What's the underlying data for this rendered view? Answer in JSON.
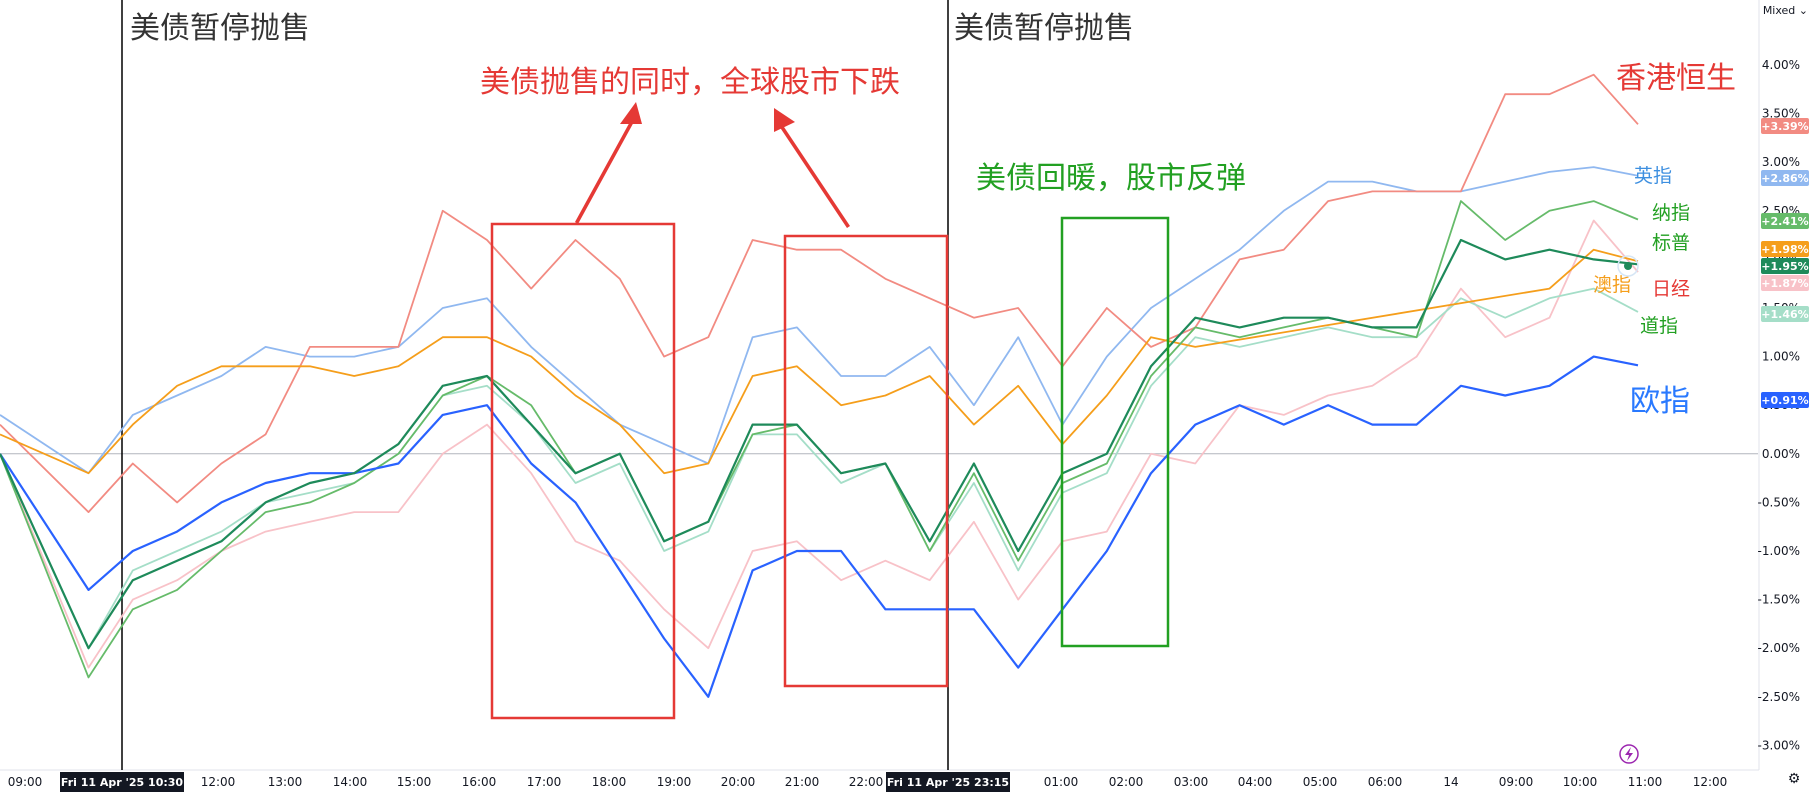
{
  "ui": {
    "scale_mode_label": "Mixed",
    "settings_icon": "gear-icon"
  },
  "colors": {
    "hsi": "#f28b82",
    "ftse": "#90b8f0",
    "nasdaq": "#66bb6a",
    "sp500": "#1e8a5a",
    "asx": "#f59e1b",
    "nikkei": "#f8c2c8",
    "dow": "#a5dec8",
    "stoxx": "#2962ff",
    "annotation_red": "#e53935",
    "annotation_green": "#22a022",
    "event_line": "#000000"
  },
  "chart_data": {
    "type": "line",
    "title": "",
    "xlabel": "",
    "ylabel": "",
    "ylim": [
      -3.0,
      4.0
    ],
    "y_ticks": [
      "4.00%",
      "3.50%",
      "3.00%",
      "2.50%",
      "2.00%",
      "1.50%",
      "1.00%",
      "0.50%",
      "0.00%",
      "-0.50%",
      "-1.00%",
      "-1.50%",
      "-2.00%",
      "-2.50%",
      "-3.00%"
    ],
    "x_ticks": [
      "09:00",
      "12:00",
      "13:00",
      "14:00",
      "15:00",
      "16:00",
      "17:00",
      "18:00",
      "19:00",
      "20:00",
      "21:00",
      "22:00",
      "01:00",
      "02:00",
      "03:00",
      "04:00",
      "05:00",
      "06:00",
      "14",
      "09:00",
      "10:00",
      "11:00",
      "12:00"
    ],
    "x_highlight_labels": [
      "Fri 11 Apr '25  10:30",
      "Fri 11 Apr '25  23:15"
    ],
    "grid": "zero-line only",
    "series": [
      {
        "id": "hsi",
        "last_value": "+3.39%",
        "points": [
          [
            0,
            0.3
          ],
          [
            2,
            -0.6
          ],
          [
            3,
            -0.1
          ],
          [
            4,
            -0.5
          ],
          [
            5,
            -0.1
          ],
          [
            6,
            0.2
          ],
          [
            7,
            1.1
          ],
          [
            8,
            1.1
          ],
          [
            9,
            1.1
          ],
          [
            10,
            2.5
          ],
          [
            11,
            2.2
          ],
          [
            12,
            1.7
          ],
          [
            13,
            2.2
          ],
          [
            14,
            1.8
          ],
          [
            15,
            1.0
          ],
          [
            16,
            1.2
          ],
          [
            17,
            2.2
          ],
          [
            18,
            2.1
          ],
          [
            19,
            2.1
          ],
          [
            20,
            1.8
          ],
          [
            21,
            1.6
          ],
          [
            22,
            1.4
          ],
          [
            23,
            1.5
          ],
          [
            24,
            0.9
          ],
          [
            25,
            1.5
          ],
          [
            26,
            1.1
          ],
          [
            27,
            1.3
          ],
          [
            28,
            2.0
          ],
          [
            29,
            2.1
          ],
          [
            30,
            2.6
          ],
          [
            31,
            2.7
          ],
          [
            32,
            2.7
          ],
          [
            33,
            2.7
          ],
          [
            34,
            3.7
          ],
          [
            35,
            3.7
          ],
          [
            36,
            3.9
          ],
          [
            37,
            3.39
          ]
        ]
      },
      {
        "id": "ftse",
        "last_value": "+2.86%",
        "points": [
          [
            0,
            0.4
          ],
          [
            2,
            -0.2
          ],
          [
            3,
            0.4
          ],
          [
            4,
            0.6
          ],
          [
            5,
            0.8
          ],
          [
            6,
            1.1
          ],
          [
            7,
            1.0
          ],
          [
            8,
            1.0
          ],
          [
            9,
            1.1
          ],
          [
            10,
            1.5
          ],
          [
            11,
            1.6
          ],
          [
            12,
            1.1
          ],
          [
            13,
            0.7
          ],
          [
            14,
            0.3
          ],
          [
            15,
            0.1
          ],
          [
            16,
            -0.1
          ],
          [
            17,
            1.2
          ],
          [
            18,
            1.3
          ],
          [
            19,
            0.8
          ],
          [
            20,
            0.8
          ],
          [
            21,
            1.1
          ],
          [
            22,
            0.5
          ],
          [
            23,
            1.2
          ],
          [
            24,
            0.3
          ],
          [
            25,
            1.0
          ],
          [
            26,
            1.5
          ],
          [
            27,
            1.8
          ],
          [
            28,
            2.1
          ],
          [
            29,
            2.5
          ],
          [
            30,
            2.8
          ],
          [
            31,
            2.8
          ],
          [
            32,
            2.7
          ],
          [
            33,
            2.7
          ],
          [
            34,
            2.8
          ],
          [
            35,
            2.9
          ],
          [
            36,
            2.95
          ],
          [
            37,
            2.86
          ]
        ]
      },
      {
        "id": "nasdaq",
        "last_value": "+2.41%",
        "points": [
          [
            0,
            0.0
          ],
          [
            2,
            -2.3
          ],
          [
            3,
            -1.6
          ],
          [
            4,
            -1.4
          ],
          [
            5,
            -1.0
          ],
          [
            6,
            -0.6
          ],
          [
            7,
            -0.5
          ],
          [
            8,
            -0.3
          ],
          [
            9,
            0.0
          ],
          [
            10,
            0.6
          ],
          [
            11,
            0.8
          ],
          [
            12,
            0.5
          ],
          [
            13,
            -0.2
          ],
          [
            14,
            0.0
          ],
          [
            15,
            -0.9
          ],
          [
            16,
            -0.7
          ],
          [
            17,
            0.2
          ],
          [
            18,
            0.3
          ],
          [
            19,
            -0.2
          ],
          [
            20,
            -0.1
          ],
          [
            21,
            -1.0
          ],
          [
            22,
            -0.2
          ],
          [
            23,
            -1.1
          ],
          [
            24,
            -0.3
          ],
          [
            25,
            -0.1
          ],
          [
            26,
            0.8
          ],
          [
            27,
            1.3
          ],
          [
            28,
            1.2
          ],
          [
            29,
            1.3
          ],
          [
            30,
            1.4
          ],
          [
            31,
            1.3
          ],
          [
            32,
            1.2
          ],
          [
            33,
            2.6
          ],
          [
            34,
            2.2
          ],
          [
            35,
            2.5
          ],
          [
            36,
            2.6
          ],
          [
            37,
            2.41
          ]
        ]
      },
      {
        "id": "sp500",
        "last_value": "+1.95%",
        "points": [
          [
            0,
            0.0
          ],
          [
            2,
            -2.0
          ],
          [
            3,
            -1.3
          ],
          [
            4,
            -1.1
          ],
          [
            5,
            -0.9
          ],
          [
            6,
            -0.5
          ],
          [
            7,
            -0.3
          ],
          [
            8,
            -0.2
          ],
          [
            9,
            0.1
          ],
          [
            10,
            0.7
          ],
          [
            11,
            0.8
          ],
          [
            12,
            0.3
          ],
          [
            13,
            -0.2
          ],
          [
            14,
            0.0
          ],
          [
            15,
            -0.9
          ],
          [
            16,
            -0.7
          ],
          [
            17,
            0.3
          ],
          [
            18,
            0.3
          ],
          [
            19,
            -0.2
          ],
          [
            20,
            -0.1
          ],
          [
            21,
            -0.9
          ],
          [
            22,
            -0.1
          ],
          [
            23,
            -1.0
          ],
          [
            24,
            -0.2
          ],
          [
            25,
            0.0
          ],
          [
            26,
            0.9
          ],
          [
            27,
            1.4
          ],
          [
            28,
            1.3
          ],
          [
            29,
            1.4
          ],
          [
            30,
            1.4
          ],
          [
            31,
            1.3
          ],
          [
            32,
            1.3
          ],
          [
            33,
            2.2
          ],
          [
            34,
            2.0
          ],
          [
            35,
            2.1
          ],
          [
            36,
            2.0
          ],
          [
            37,
            1.95
          ]
        ]
      },
      {
        "id": "asx",
        "last_value": "+1.98%",
        "points": [
          [
            0,
            0.2
          ],
          [
            2,
            -0.2
          ],
          [
            3,
            0.3
          ],
          [
            4,
            0.7
          ],
          [
            5,
            0.9
          ],
          [
            6,
            0.9
          ],
          [
            7,
            0.9
          ],
          [
            8,
            0.8
          ],
          [
            9,
            0.9
          ],
          [
            10,
            1.2
          ],
          [
            11,
            1.2
          ],
          [
            12,
            1.0
          ],
          [
            13,
            0.6
          ],
          [
            14,
            0.3
          ],
          [
            15,
            -0.2
          ],
          [
            16,
            -0.1
          ],
          [
            17,
            0.8
          ],
          [
            18,
            0.9
          ],
          [
            19,
            0.5
          ],
          [
            20,
            0.6
          ],
          [
            21,
            0.8
          ],
          [
            22,
            0.3
          ],
          [
            23,
            0.7
          ],
          [
            24,
            0.1
          ],
          [
            25,
            0.6
          ],
          [
            26,
            1.2
          ],
          [
            27,
            1.1
          ],
          [
            35,
            1.7
          ],
          [
            36,
            2.1
          ],
          [
            37,
            1.98
          ]
        ]
      },
      {
        "id": "nikkei",
        "last_value": "+1.87%",
        "points": [
          [
            0,
            0.0
          ],
          [
            2,
            -2.2
          ],
          [
            3,
            -1.5
          ],
          [
            4,
            -1.3
          ],
          [
            5,
            -1.0
          ],
          [
            6,
            -0.8
          ],
          [
            7,
            -0.7
          ],
          [
            8,
            -0.6
          ],
          [
            9,
            -0.6
          ],
          [
            10,
            0.0
          ],
          [
            11,
            0.3
          ],
          [
            12,
            -0.2
          ],
          [
            13,
            -0.9
          ],
          [
            14,
            -1.1
          ],
          [
            15,
            -1.6
          ],
          [
            16,
            -2.0
          ],
          [
            17,
            -1.0
          ],
          [
            18,
            -0.9
          ],
          [
            19,
            -1.3
          ],
          [
            20,
            -1.1
          ],
          [
            21,
            -1.3
          ],
          [
            22,
            -0.7
          ],
          [
            23,
            -1.5
          ],
          [
            24,
            -0.9
          ],
          [
            25,
            -0.8
          ],
          [
            26,
            0.0
          ],
          [
            27,
            -0.1
          ],
          [
            28,
            0.5
          ],
          [
            29,
            0.4
          ],
          [
            30,
            0.6
          ],
          [
            31,
            0.7
          ],
          [
            32,
            1.0
          ],
          [
            33,
            1.7
          ],
          [
            34,
            1.2
          ],
          [
            35,
            1.4
          ],
          [
            36,
            2.4
          ],
          [
            37,
            1.87
          ]
        ]
      },
      {
        "id": "dow",
        "last_value": "+1.46%",
        "points": [
          [
            0,
            0.0
          ],
          [
            2,
            -2.0
          ],
          [
            3,
            -1.2
          ],
          [
            4,
            -1.0
          ],
          [
            5,
            -0.8
          ],
          [
            6,
            -0.5
          ],
          [
            7,
            -0.4
          ],
          [
            8,
            -0.3
          ],
          [
            9,
            0.0
          ],
          [
            10,
            0.6
          ],
          [
            11,
            0.7
          ],
          [
            12,
            0.3
          ],
          [
            13,
            -0.3
          ],
          [
            14,
            -0.1
          ],
          [
            15,
            -1.0
          ],
          [
            16,
            -0.8
          ],
          [
            17,
            0.2
          ],
          [
            18,
            0.2
          ],
          [
            19,
            -0.3
          ],
          [
            20,
            -0.1
          ],
          [
            21,
            -1.0
          ],
          [
            22,
            -0.3
          ],
          [
            23,
            -1.2
          ],
          [
            24,
            -0.4
          ],
          [
            25,
            -0.2
          ],
          [
            26,
            0.7
          ],
          [
            27,
            1.2
          ],
          [
            28,
            1.1
          ],
          [
            29,
            1.2
          ],
          [
            30,
            1.3
          ],
          [
            31,
            1.2
          ],
          [
            32,
            1.2
          ],
          [
            33,
            1.6
          ],
          [
            34,
            1.4
          ],
          [
            35,
            1.6
          ],
          [
            36,
            1.7
          ],
          [
            37,
            1.46
          ]
        ]
      },
      {
        "id": "stoxx",
        "last_value": "+0.91%",
        "points": [
          [
            0,
            0.0
          ],
          [
            2,
            -1.4
          ],
          [
            3,
            -1.0
          ],
          [
            4,
            -0.8
          ],
          [
            5,
            -0.5
          ],
          [
            6,
            -0.3
          ],
          [
            7,
            -0.2
          ],
          [
            8,
            -0.2
          ],
          [
            9,
            -0.1
          ],
          [
            10,
            0.4
          ],
          [
            11,
            0.5
          ],
          [
            12,
            -0.1
          ],
          [
            13,
            -0.5
          ],
          [
            14,
            -1.2
          ],
          [
            15,
            -1.9
          ],
          [
            16,
            -2.5
          ],
          [
            17,
            -1.2
          ],
          [
            18,
            -1.0
          ],
          [
            19,
            -1.0
          ],
          [
            20,
            -1.6
          ],
          [
            21,
            -1.6
          ],
          [
            22,
            -1.6
          ],
          [
            23,
            -2.2
          ],
          [
            24,
            -1.6
          ],
          [
            25,
            -1.0
          ],
          [
            26,
            -0.2
          ],
          [
            27,
            0.3
          ],
          [
            28,
            0.5
          ],
          [
            29,
            0.3
          ],
          [
            30,
            0.5
          ],
          [
            31,
            0.3
          ],
          [
            32,
            0.3
          ],
          [
            33,
            0.7
          ],
          [
            34,
            0.6
          ],
          [
            35,
            0.7
          ],
          [
            36,
            1.0
          ],
          [
            37,
            0.91
          ]
        ]
      }
    ],
    "series_labels": [
      {
        "target": "hsi",
        "text": "香港恒生"
      },
      {
        "target": "ftse",
        "text": "英指"
      },
      {
        "target": "nasdaq",
        "text": "纳指"
      },
      {
        "target": "sp500",
        "text": "标普"
      },
      {
        "target": "asx",
        "text": "澳指"
      },
      {
        "target": "nikkei",
        "text": "日经"
      },
      {
        "target": "dow",
        "text": "道指"
      },
      {
        "target": "stoxx",
        "text": "欧指"
      }
    ],
    "annotations": {
      "event_labels": [
        "美债暂停抛售",
        "美债暂停抛售"
      ],
      "red_callout": "美债抛售的同时，全球股市下跌",
      "green_callout": "美债回暖，股市反弹"
    }
  }
}
